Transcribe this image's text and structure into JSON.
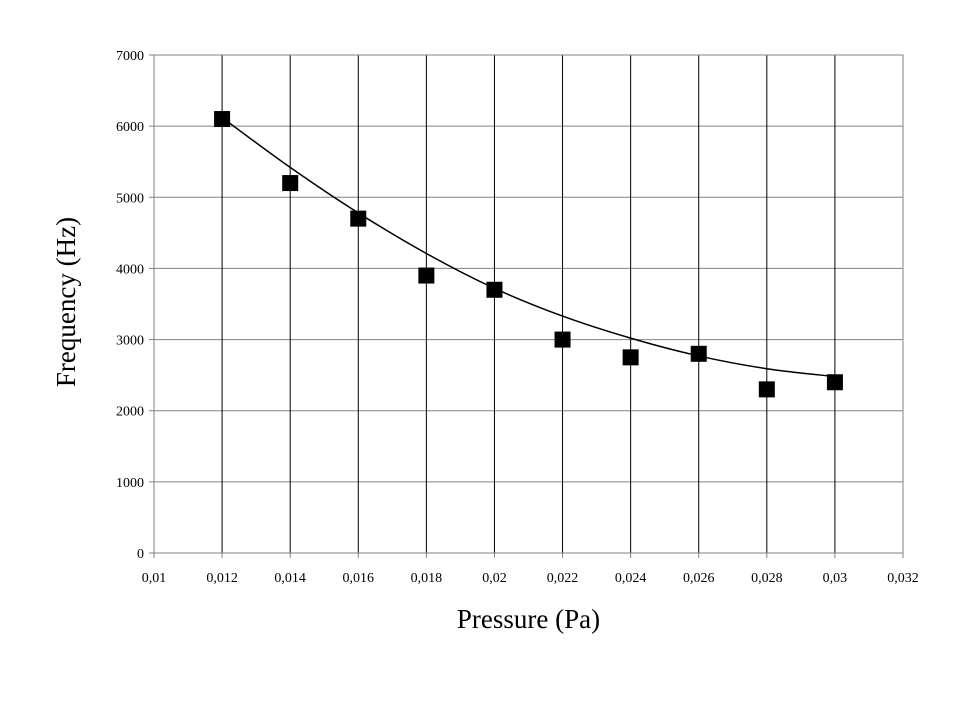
{
  "chart_data": {
    "type": "scatter",
    "title": "",
    "xlabel": "Pressure (Pa)",
    "ylabel": "Frequency (Hz)",
    "xlim": [
      0.01,
      0.032
    ],
    "ylim": [
      0,
      7000
    ],
    "grid": true,
    "legend": "none",
    "x_ticks": [
      0.01,
      0.012,
      0.014,
      0.016,
      0.018,
      0.02,
      0.022,
      0.024,
      0.026,
      0.028,
      0.03,
      0.032
    ],
    "x_tick_labels": [
      "0,01",
      "0,012",
      "0,014",
      "0,016",
      "0,018",
      "0,02",
      "0,022",
      "0,024",
      "0,026",
      "0,028",
      "0,03",
      "0,032"
    ],
    "y_ticks": [
      0,
      1000,
      2000,
      3000,
      4000,
      5000,
      6000,
      7000
    ],
    "y_tick_labels": [
      "0",
      "1000",
      "2000",
      "3000",
      "4000",
      "5000",
      "6000",
      "7000"
    ],
    "series": [
      {
        "marker": "square",
        "color": "#000000",
        "x": [
          0.012,
          0.014,
          0.016,
          0.018,
          0.02,
          0.022,
          0.024,
          0.026,
          0.028,
          0.03
        ],
        "y": [
          6100,
          5200,
          4700,
          3900,
          3700,
          3000,
          2750,
          2800,
          2300,
          2400
        ]
      }
    ],
    "trendline": {
      "type": "polynomial",
      "color": "#000000",
      "x": [
        0.012,
        0.014,
        0.016,
        0.018,
        0.02,
        0.022,
        0.024,
        0.026,
        0.028,
        0.03
      ],
      "y": [
        6120,
        5420,
        4780,
        4210,
        3720,
        3330,
        3020,
        2770,
        2590,
        2480
      ]
    }
  }
}
